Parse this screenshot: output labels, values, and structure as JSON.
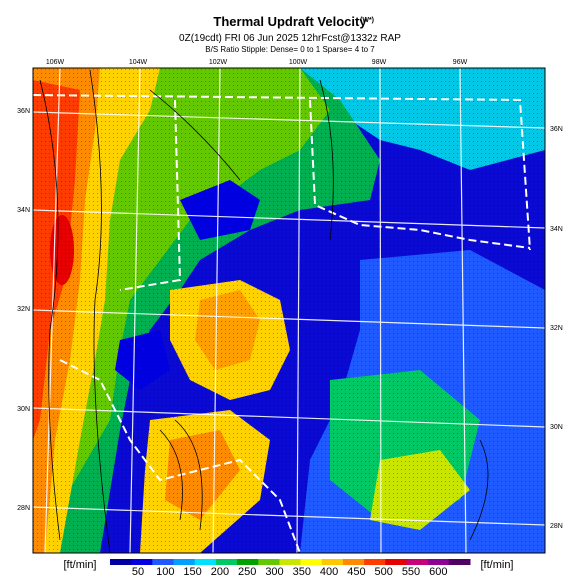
{
  "header": {
    "title": "Thermal Updraft Velocity",
    "title_units": "(W*)",
    "subtitle": "0Z(19cdt) FRI 06 Jun 2025 12hrFcst@1332z RAP",
    "note": "B/S Ratio Stipple: Dense= 0 to 1 Sparse= 4 to 7"
  },
  "map": {
    "lon_labels": [
      "106W",
      "104W",
      "102W",
      "100W",
      "98W",
      "96W"
    ],
    "lat_labels_left": [
      "36N",
      "34N",
      "32N",
      "30N",
      "28N"
    ],
    "lat_labels_right": [
      "36N",
      "34N",
      "32N",
      "30N",
      "28N"
    ]
  },
  "colorbar": {
    "unit_left": "[ft/min]",
    "unit_right": "[ft/min]",
    "ticks": [
      "50",
      "100",
      "150",
      "200",
      "250",
      "300",
      "350",
      "400",
      "450",
      "500",
      "550",
      "600"
    ],
    "colors": [
      "#0000a0",
      "#0000e0",
      "#1e5aff",
      "#00a0ff",
      "#00e0ff",
      "#00c864",
      "#00a000",
      "#64c800",
      "#c8e600",
      "#ffff00",
      "#ffc800",
      "#ff8c00",
      "#ff3c00",
      "#e60000",
      "#c80078",
      "#8c0096",
      "#500064"
    ]
  }
}
